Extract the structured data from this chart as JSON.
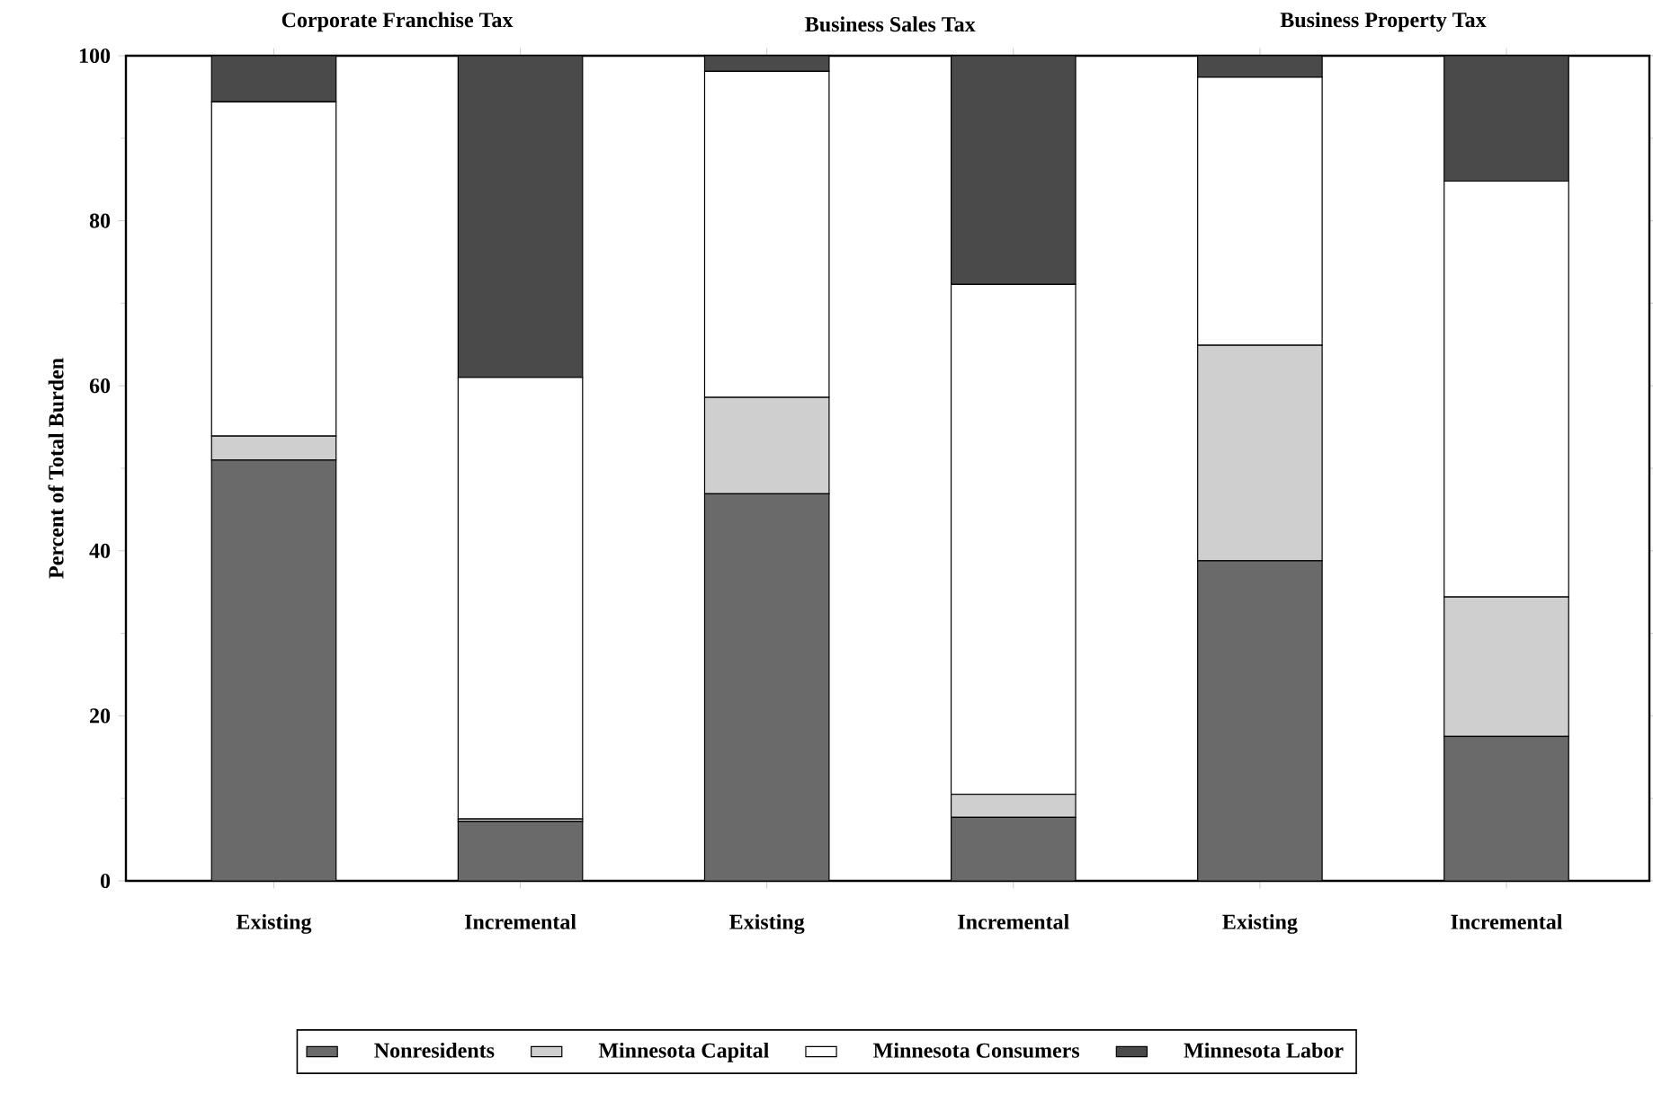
{
  "chart_data": {
    "type": "bar",
    "stacked": true,
    "ylabel": "Percent of Total Burden",
    "annotations": [
      "Corporate Franchise Tax",
      "Business Sales Tax",
      "Business Property Tax"
    ],
    "categories": [
      "Existing",
      "Incremental",
      "Existing",
      "Incremental",
      "Existing",
      "Incremental"
    ],
    "series": [
      {
        "name": "Nonresidents",
        "color": "#6a6a6a",
        "values": [
          51.0,
          7.2,
          46.9,
          7.7,
          38.8,
          17.5
        ]
      },
      {
        "name": "Minnesota Capital",
        "color": "#cfcfcf",
        "values": [
          2.9,
          0.3,
          11.7,
          2.8,
          26.1,
          16.9
        ]
      },
      {
        "name": "Minnesota Consumers",
        "color": "#ffffff",
        "values": [
          40.5,
          53.5,
          39.5,
          61.8,
          32.5,
          50.4
        ]
      },
      {
        "name": "Minnesota Labor",
        "color": "#4a4a4a",
        "values": [
          5.6,
          39.0,
          1.9,
          27.7,
          2.6,
          15.2
        ]
      }
    ],
    "ylim": [
      0,
      100
    ],
    "yticks": [
      0,
      20,
      40,
      60,
      80,
      100
    ],
    "legend": "bottom",
    "grid": false
  }
}
